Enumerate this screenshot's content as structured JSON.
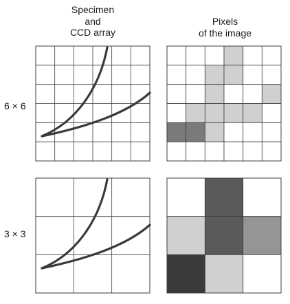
{
  "headers": {
    "specimen": "Specimen\nand\nCCD array",
    "pixels": "Pixels\nof the image"
  },
  "rows": [
    {
      "label": "6 × 6",
      "grid": 6,
      "pixel_shades": [
        [
          0,
          0,
          0,
          1,
          0,
          0
        ],
        [
          0,
          0,
          1,
          1,
          0,
          0
        ],
        [
          0,
          0,
          1,
          0,
          0,
          1
        ],
        [
          0,
          1,
          1,
          1,
          1,
          0
        ],
        [
          4,
          4,
          1,
          0,
          0,
          0
        ],
        [
          0,
          0,
          0,
          0,
          0,
          0
        ]
      ]
    },
    {
      "label": "3 × 3",
      "grid": 3,
      "pixel_shades": [
        [
          0,
          5,
          0
        ],
        [
          1,
          5,
          3
        ],
        [
          6,
          1,
          0
        ]
      ]
    }
  ],
  "shade_colors": [
    "#ffffff",
    "#d0d0d0",
    "#bdbdbd",
    "#959595",
    "#7a7a7a",
    "#5a5a5a",
    "#3a3a3a"
  ],
  "colors": {
    "grid_line": "#3c3c3c",
    "curve": "#3a3a3a",
    "background": "#ffffff"
  }
}
